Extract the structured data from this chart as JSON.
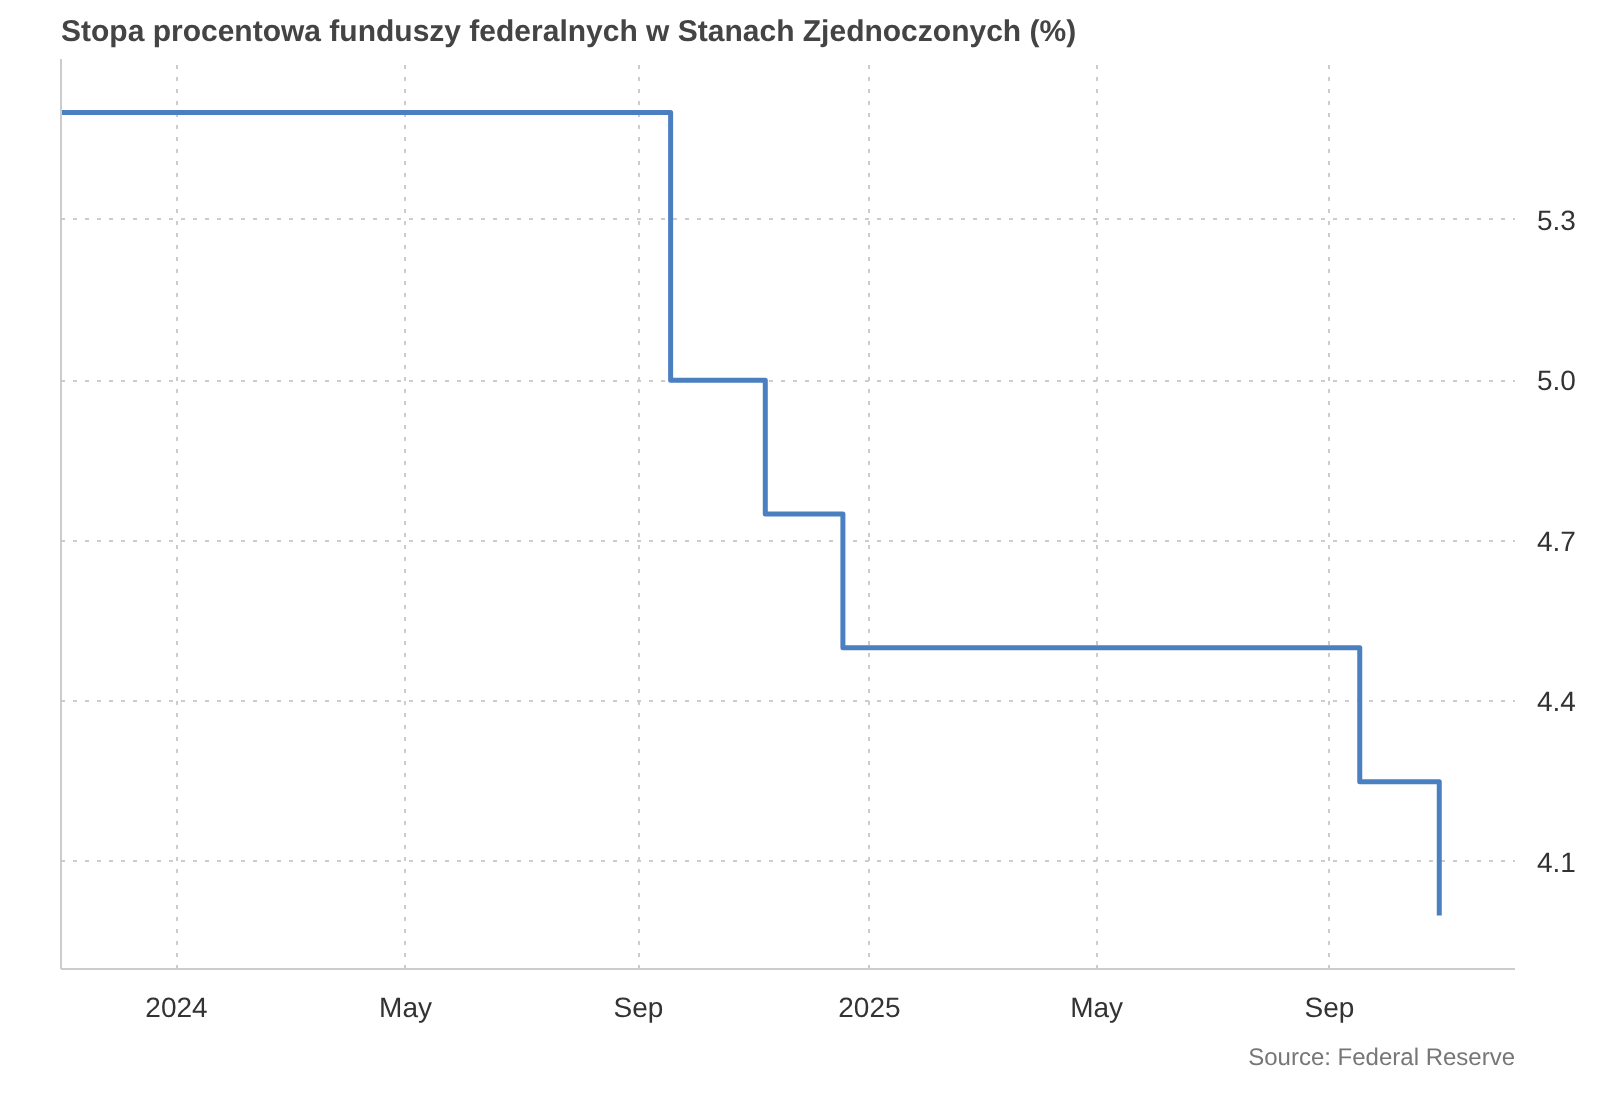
{
  "chart_data": {
    "type": "step",
    "title": "Stopa procentowa funduszy federalnych w Stanach Zjednoczonych (%)",
    "x": [
      "2023-11-01",
      "2024-09-18",
      "2024-11-07",
      "2024-12-18",
      "2025-09-17",
      "2025-10-29"
    ],
    "series": [
      {
        "color": "#4a80c0",
        "values": [
          5.5,
          5.0,
          4.75,
          4.5,
          4.25,
          4.0
        ]
      }
    ],
    "xlim": [
      "2023-11-01",
      "2025-12-08"
    ],
    "xticks": [
      {
        "value": "2024-01-01",
        "label": "2024"
      },
      {
        "value": "2024-05-01",
        "label": "May"
      },
      {
        "value": "2024-09-01",
        "label": "Sep"
      },
      {
        "value": "2025-01-01",
        "label": "2025"
      },
      {
        "value": "2025-05-01",
        "label": "May"
      },
      {
        "value": "2025-09-01",
        "label": "Sep"
      }
    ],
    "ylim": [
      3.9,
      5.6
    ],
    "yticks": [
      4.1,
      4.4,
      4.7,
      {
        "value": 5,
        "label": "5.0"
      },
      5.3
    ],
    "grid": true,
    "annotations": [
      "Source: Federal Reserve"
    ]
  }
}
